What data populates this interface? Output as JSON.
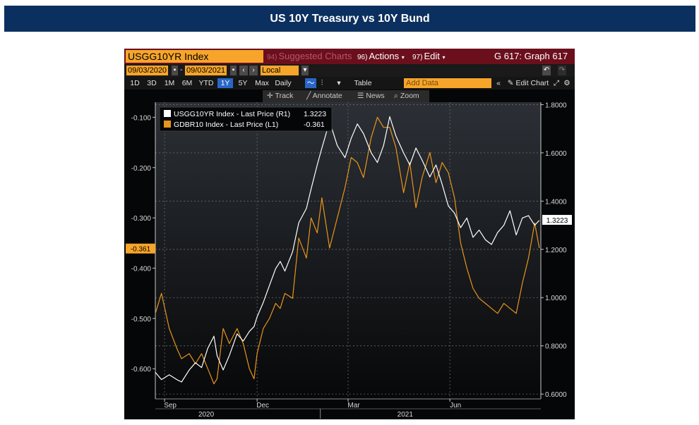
{
  "banner": {
    "title": "US 10Y Treasury vs 10Y Bund"
  },
  "terminal": {
    "security": "USGG10YR Index",
    "suggested_num": "94)",
    "suggested_label": "Suggested Charts",
    "actions_num": "96)",
    "actions_label": "Actions",
    "edit_num": "97)",
    "edit_label": "Edit",
    "graph_label": "G 617: Graph 617",
    "start_date": "09/03/2020",
    "end_date": "09/03/2021",
    "currency": "Local CCY",
    "timeframes": [
      "1D",
      "3D",
      "1M",
      "6M",
      "YTD",
      "1Y",
      "5Y",
      "Max"
    ],
    "periodicity": "Daily",
    "table_label": "Table",
    "add_data_placeholder": "Add Data",
    "edit_chart_label": "Edit Chart",
    "tools": [
      "Track",
      "Annotate",
      "News",
      "Zoom"
    ]
  },
  "colors": {
    "usgg": "#ffffff",
    "gdbr": "#e8951c",
    "banner": "#0b2f5e",
    "accent": "#f7a52a"
  },
  "chart_data": {
    "type": "line",
    "title": "US 10Y Treasury vs 10Y Bund",
    "series": [
      {
        "name": "USGG10YR Index - Last Price (R1)",
        "last_value": "1.3223",
        "axis": "right",
        "x": [
          0,
          4,
          9,
          14,
          17,
          22,
          26,
          30,
          34,
          38,
          40,
          44,
          48,
          53,
          57,
          61,
          64,
          66,
          70,
          74,
          78,
          81,
          84,
          89,
          93,
          98,
          101,
          105,
          108,
          113,
          118,
          123,
          127,
          131,
          135,
          140,
          144,
          148,
          152,
          156,
          161,
          165,
          169,
          173,
          178,
          182,
          186,
          190,
          194,
          198,
          202,
          206,
          210,
          214,
          218,
          222,
          226,
          230,
          234,
          238,
          242,
          246,
          249
        ],
        "values": [
          0.69,
          0.66,
          0.68,
          0.66,
          0.65,
          0.7,
          0.73,
          0.71,
          0.79,
          0.84,
          0.76,
          0.7,
          0.76,
          0.85,
          0.82,
          0.86,
          0.88,
          0.92,
          0.98,
          1.05,
          1.12,
          1.15,
          1.11,
          1.19,
          1.31,
          1.37,
          1.45,
          1.55,
          1.62,
          1.73,
          1.63,
          1.58,
          1.66,
          1.72,
          1.68,
          1.6,
          1.56,
          1.63,
          1.75,
          1.67,
          1.6,
          1.55,
          1.62,
          1.57,
          1.5,
          1.55,
          1.47,
          1.38,
          1.35,
          1.29,
          1.33,
          1.25,
          1.28,
          1.24,
          1.22,
          1.27,
          1.3,
          1.36,
          1.26,
          1.33,
          1.34,
          1.3,
          1.32
        ]
      },
      {
        "name": "GDBR10 Index - Last Price (L1)",
        "last_value": "-0.361",
        "axis": "left",
        "x": [
          0,
          4,
          9,
          14,
          17,
          22,
          26,
          30,
          34,
          38,
          40,
          44,
          48,
          53,
          57,
          61,
          64,
          66,
          70,
          74,
          78,
          81,
          84,
          89,
          93,
          98,
          101,
          105,
          108,
          113,
          118,
          123,
          127,
          131,
          135,
          140,
          144,
          148,
          152,
          156,
          161,
          165,
          169,
          173,
          178,
          182,
          186,
          190,
          194,
          198,
          202,
          206,
          210,
          214,
          218,
          222,
          226,
          230,
          234,
          238,
          242,
          246,
          249
        ],
        "values": [
          -0.49,
          -0.45,
          -0.52,
          -0.56,
          -0.58,
          -0.57,
          -0.59,
          -0.57,
          -0.6,
          -0.63,
          -0.62,
          -0.52,
          -0.55,
          -0.52,
          -0.55,
          -0.6,
          -0.62,
          -0.57,
          -0.52,
          -0.5,
          -0.47,
          -0.48,
          -0.45,
          -0.46,
          -0.34,
          -0.38,
          -0.3,
          -0.33,
          -0.26,
          -0.36,
          -0.3,
          -0.24,
          -0.18,
          -0.19,
          -0.22,
          -0.14,
          -0.1,
          -0.12,
          -0.12,
          -0.16,
          -0.25,
          -0.19,
          -0.28,
          -0.22,
          -0.17,
          -0.23,
          -0.19,
          -0.21,
          -0.26,
          -0.35,
          -0.4,
          -0.44,
          -0.46,
          -0.47,
          -0.48,
          -0.49,
          -0.47,
          -0.48,
          -0.49,
          -0.43,
          -0.38,
          -0.31,
          -0.36
        ]
      }
    ],
    "left_axis": {
      "ticks": [
        "-0.100",
        "-0.200",
        "-0.300",
        "-0.400",
        "-0.500",
        "-0.600"
      ],
      "range": [
        -0.66,
        -0.07
      ]
    },
    "right_axis": {
      "ticks": [
        "1.8000",
        "1.6000",
        "1.4000",
        "1.2000",
        "1.0000",
        "0.8000",
        "0.6000"
      ],
      "range": [
        0.58,
        1.81
      ]
    },
    "x_range": [
      0,
      250
    ],
    "month_labels": [
      {
        "label": "Sep",
        "x": 6
      },
      {
        "label": "Dec",
        "x": 66
      },
      {
        "label": "Mar",
        "x": 125
      },
      {
        "label": "Jun",
        "x": 191
      }
    ],
    "year_labels": [
      {
        "label": "2020",
        "x": 33
      },
      {
        "label": "2021",
        "x": 162
      }
    ],
    "xlabel": "",
    "ylabel": ""
  }
}
